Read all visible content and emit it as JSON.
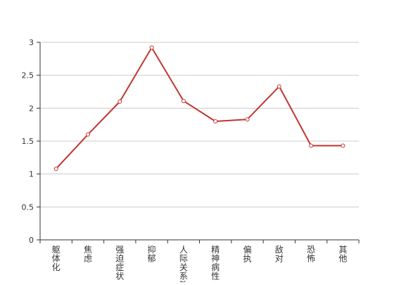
{
  "chart_data": {
    "type": "line",
    "title": "",
    "xlabel": "",
    "ylabel": "",
    "categories": [
      "躯体化",
      "焦虑",
      "强迫症状",
      "抑郁",
      "人际关系敏感",
      "精神病性",
      "偏执",
      "敌对",
      "恐怖",
      "其他"
    ],
    "series": [
      {
        "values": [
          1.08,
          1.6,
          2.1,
          2.92,
          2.11,
          1.8,
          1.83,
          2.33,
          1.43,
          1.43
        ]
      }
    ],
    "ylim": [
      0,
      3
    ],
    "yticks": [
      "0",
      "0.5",
      "1",
      "1.5",
      "2",
      "2.5",
      "3"
    ],
    "grid": true,
    "legend": "none",
    "colors": {
      "line": "#c23531",
      "marker_fill": "#ffffff",
      "grid": "#cccccc",
      "axis": "#333333",
      "text": "#333333"
    }
  }
}
